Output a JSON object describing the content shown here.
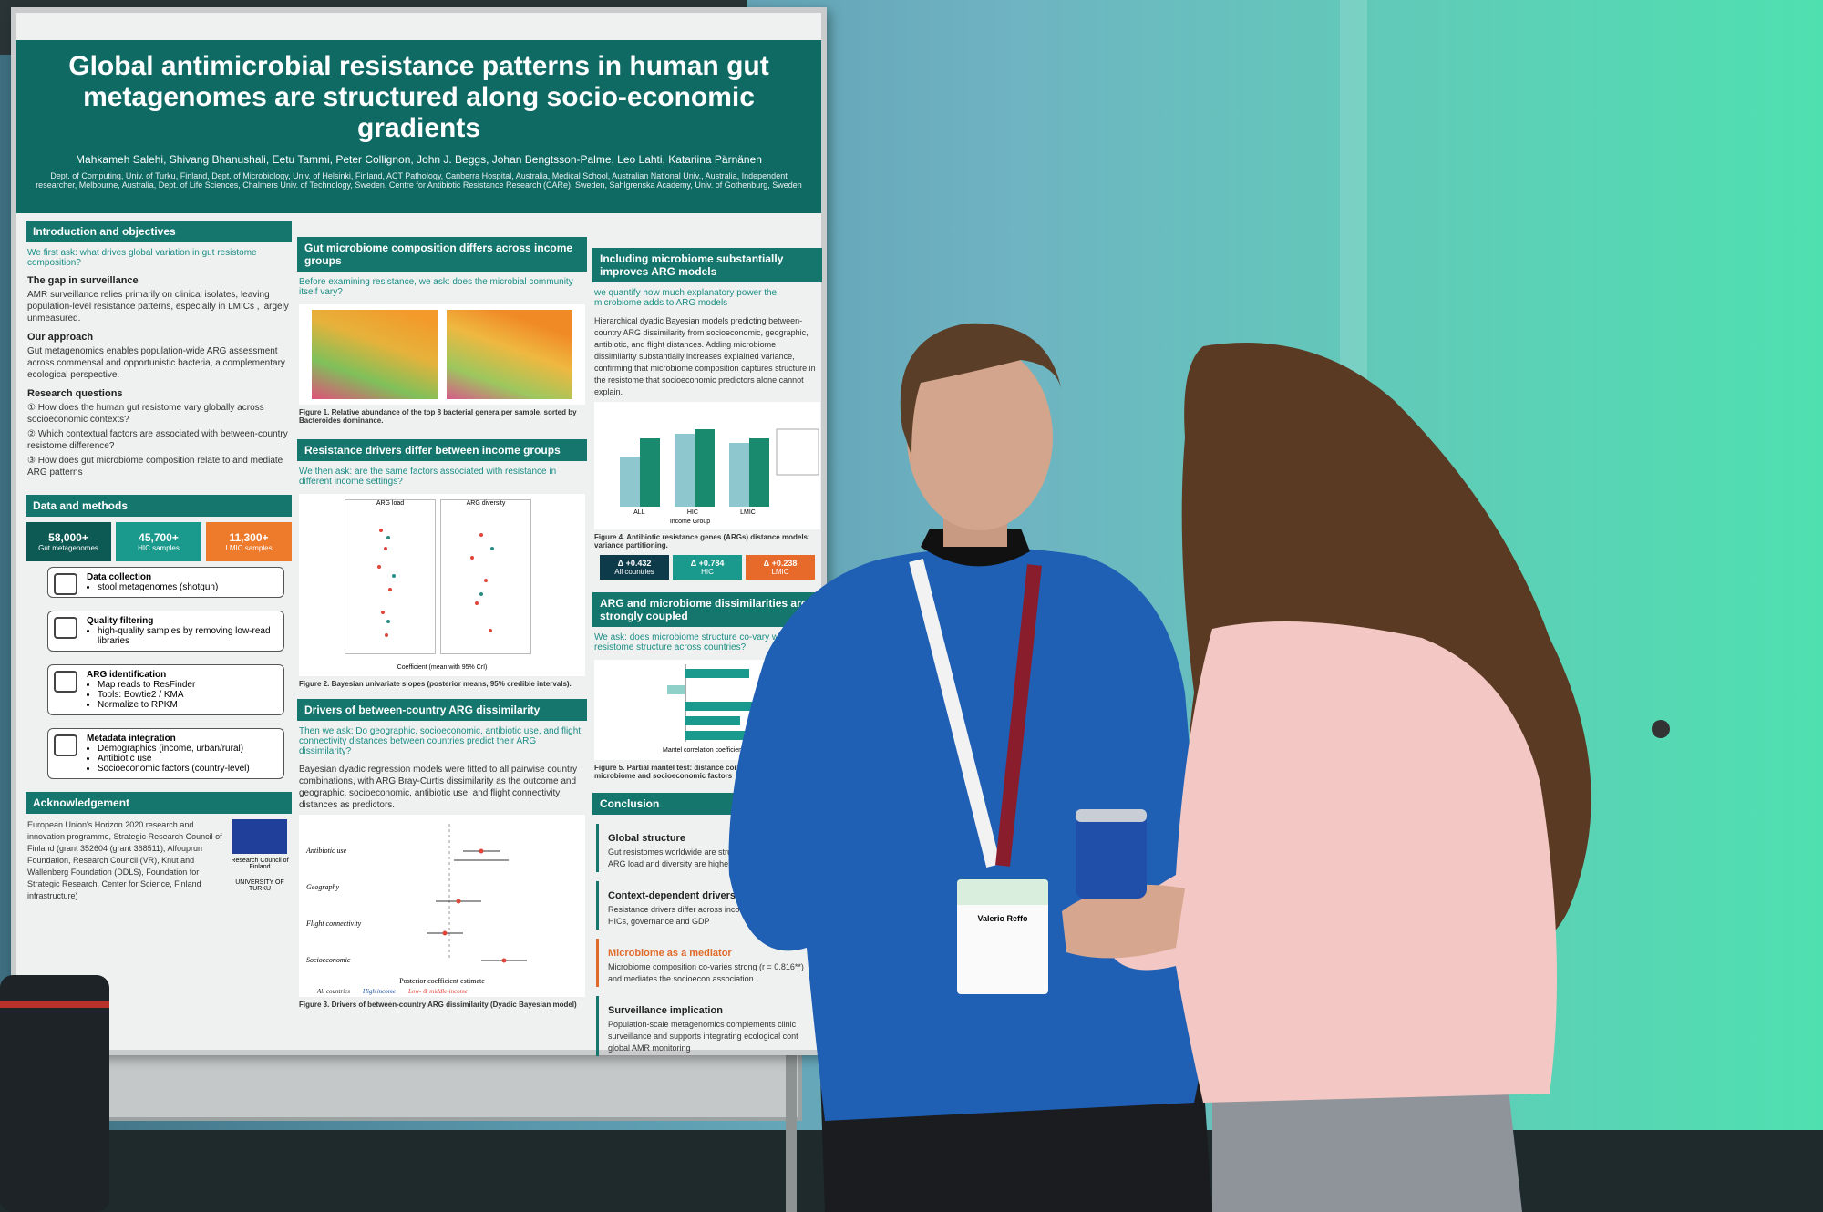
{
  "poster": {
    "title": "Global antimicrobial resistance patterns in human gut metagenomes are structured along socio-economic gradients",
    "authors": "Mahkameh Salehi, Shivang Bhanushali, Eetu Tammi, Peter Collignon, John J. Beggs, Johan Bengtsson-Palme, Leo Lahti, Katariina Pärnänen",
    "affiliations": "Dept. of Computing, Univ. of Turku, Finland, Dept. of Microbiology, Univ. of Helsinki, Finland, ACT Pathology, Canberra Hospital, Australia, Medical School, Australian National Univ., Australia, Independent researcher, Melbourne, Australia, Dept. of Life Sciences, Chalmers Univ. of Technology, Sweden, Centre for Antibiotic Resistance Research (CARe), Sweden, Sahlgrenska Academy, Univ. of Gothenburg, Sweden",
    "intro": {
      "heading": "Introduction and objectives",
      "lead": "We first ask: what drives global variation in gut resistome composition?",
      "gap_heading": "The gap in surveillance",
      "gap_text": "AMR surveillance relies primarily on clinical isolates, leaving population-level resistance patterns, especially in LMICs , largely unmeasured.",
      "approach_heading": "Our approach",
      "approach_text": "Gut metagenomics enables population-wide ARG assessment across commensal and opportunistic bacteria, a complementary ecological perspective.",
      "questions_heading": "Research questions",
      "questions": [
        "① How does the human gut resistome vary globally across socioeconomic contexts?",
        "② Which contextual factors are associated with between-country resistome difference?",
        "③ How does gut microbiome composition relate to and mediate ARG patterns"
      ]
    },
    "methods": {
      "heading": "Data and methods",
      "stats": [
        {
          "value": "58,000+",
          "label": "Gut metagenomes"
        },
        {
          "value": "45,700+",
          "label": "HIC samples"
        },
        {
          "value": "11,300+",
          "label": "LMIC samples"
        }
      ],
      "steps": [
        {
          "title": "Data collection",
          "items": [
            "stool metagenomes (shotgun)"
          ]
        },
        {
          "title": "Quality filtering",
          "items": [
            "high-quality samples by removing low-read libraries"
          ]
        },
        {
          "title": "ARG identification",
          "items": [
            "Map reads to ResFinder",
            "Tools: Bowtie2 / KMA",
            "Normalize to RPKM"
          ]
        },
        {
          "title": "Metadata integration",
          "items": [
            "Demographics (income, urban/rural)",
            "Antibiotic use",
            "Socioeconomic factors (country-level)"
          ]
        }
      ]
    },
    "acknowledgement": {
      "heading": "Acknowledgement",
      "text": "European Union's Horizon 2020 research and innovation programme, Strategic Research Council of Finland (grant 352604 (grant 368511), Alfouprun Foundation, Research Council (VR), Knut and Wallenberg Foundation (DDLS), Foundation for Strategic Research, Center for Science, Finland infrastructure)",
      "logos": [
        "Research Council of Finland",
        "UNIVERSITY OF TURKU"
      ]
    },
    "composition": {
      "heading": "Gut microbiome composition differs across income groups",
      "lead": "Before examining resistance, we ask: does the microbial community itself vary?",
      "caption": "Figure 1. Relative abundance of the top 8 bacterial genera per sample, sorted by Bacteroides dominance."
    },
    "drivers": {
      "heading": "Resistance drivers differ between income groups",
      "lead": "We then ask: are the same factors associated with resistance in different income settings?",
      "panels": [
        "ARG load",
        "ARG diversity"
      ],
      "axis": "Coefficient (mean with 95% CrI)",
      "caption": "Figure 2. Bayesian univariate slopes (posterior means, 95% credible intervals)."
    },
    "dissimilarity": {
      "heading": "Drivers of between-country ARG dissimilarity",
      "lead": "Then we ask: Do geographic, socioeconomic, antibiotic use, and flight connectivity distances between countries predict their ARG dissimilarity?",
      "text": "Bayesian dyadic regression models were fitted to all pairwise country combinations, with ARG Bray-Curtis dissimilarity as the outcome and geographic, socioeconomic, antibiotic use, and flight connectivity distances as predictors.",
      "predictors": [
        "Antibiotic use",
        "Geography",
        "Flight connectivity",
        "Socioeconomic"
      ],
      "axis": "Posterior coefficient estimate",
      "legend": [
        "All countries",
        "High income",
        "Low- & middle-income"
      ],
      "caption": "Figure 3. Drivers of between-country ARG dissimilarity (Dyadic Bayesian model)"
    },
    "models": {
      "heading": "Including microbiome substantially improves ARG models",
      "lead": "we quantify how much explanatory power the microbiome adds to ARG models",
      "text": "Hierarchical dyadic Bayesian models predicting between-country ARG dissimilarity from socioeconomic, geographic, antibiotic, and flight distances. Adding microbiome dissimilarity substantially increases explained variance, confirming that microbiome composition captures structure in the resistome that socioeconomic predictors alone cannot explain.",
      "axis": "Income Group",
      "groups": [
        "ALL",
        "HIC",
        "LMIC"
      ],
      "caption": "Figure 4. Antibiotic resistance genes (ARGs) distance models: variance partitioning.",
      "deltas": [
        {
          "value": "Δ +0.432",
          "label": "All countries"
        },
        {
          "value": "Δ +0.784",
          "label": "HIC"
        },
        {
          "value": "Δ +0.238",
          "label": "LMIC"
        }
      ]
    },
    "coupling": {
      "heading": "ARG and microbiome dissimilarities are strongly coupled",
      "lead": "We ask: does microbiome structure co-vary with resistome structure across countries?",
      "axis": "Mantel correlation coefficient (r)",
      "caption": "Figure 5. Partial mantel test: distance correlation among ARG, microbiome and socioeconomic factors"
    },
    "conclusion": {
      "heading": "Conclusion",
      "items": [
        {
          "title": "Global structure",
          "text": "Gut resistomes worldwide are structured al gradients. ARG load and diversity are highe"
        },
        {
          "title": "Context-dependent drivers",
          "text": "Resistance drivers differ across income gr dominates in HICs, governance and GDP"
        },
        {
          "title": "Microbiome as a mediator",
          "text": "Microbiome composition co-varies strong (r = 0.816**) and mediates the socioecon association."
        },
        {
          "title": "Surveillance implication",
          "text": "Population-scale metagenomics complements clinic surveillance and supports integrating ecological cont global AMR monitoring"
        }
      ]
    }
  },
  "badge": {
    "name": "Valerio Reffo"
  }
}
